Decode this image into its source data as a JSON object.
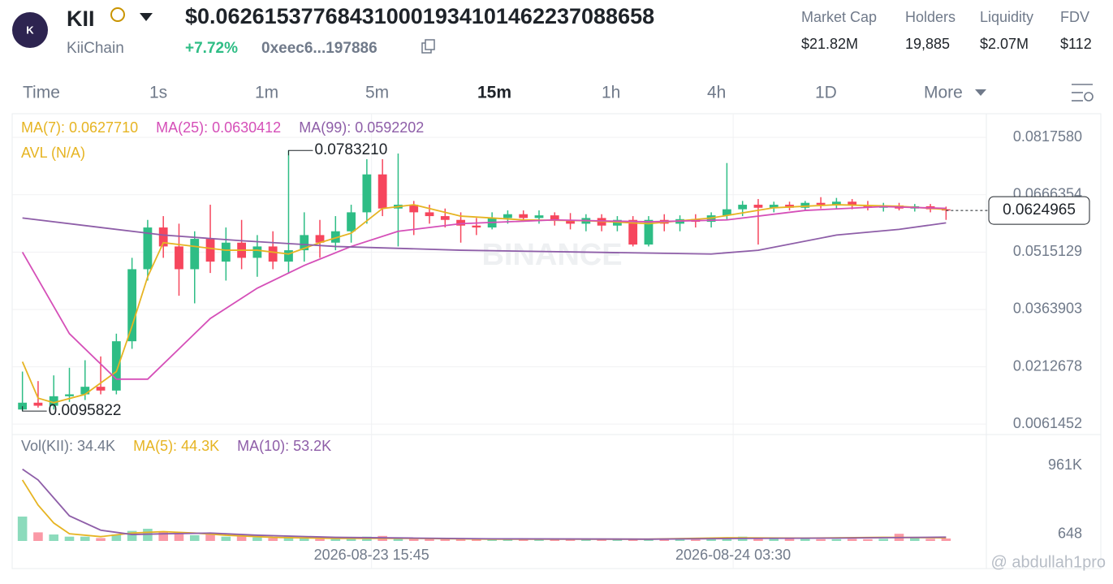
{
  "header": {
    "symbol": "KII",
    "name": "KiiChain",
    "price": "$0.062615377684310001934101462237088658",
    "change": "+7.72%",
    "address": "0xeec6...197886",
    "stats": [
      {
        "label": "Market Cap",
        "value": "$21.82M"
      },
      {
        "label": "Holders",
        "value": "19,885"
      },
      {
        "label": "Liquidity",
        "value": "$2.07M"
      },
      {
        "label": "FDV",
        "value": "$112"
      }
    ]
  },
  "tabs": [
    "Time",
    "1s",
    "1m",
    "5m",
    "15m",
    "1h",
    "4h",
    "1D",
    "More"
  ],
  "active_tab": "15m",
  "chart_data": {
    "type": "candlestick",
    "legend": [
      {
        "text": "MA(7): 0.0627710",
        "color": "#e6b422"
      },
      {
        "text": "MA(25): 0.0630412",
        "color": "#d54fb8"
      },
      {
        "text": "MA(99): 0.0592202",
        "color": "#8e5ea8"
      }
    ],
    "avl_label": "AVL (N/A)",
    "watermark": "BINANCE",
    "up_color": "#2ebd85",
    "down_color": "#f6465d",
    "open": [
      0.01,
      0.0118,
      0.011,
      0.0135,
      0.014,
      0.016,
      0.015,
      0.028,
      0.047,
      0.058,
      0.053,
      0.047,
      0.055,
      0.049,
      0.054,
      0.05,
      0.053,
      0.049,
      0.052,
      0.056,
      0.054,
      0.057,
      0.062,
      0.072,
      0.063,
      0.064,
      0.062,
      0.061,
      0.06,
      0.0585,
      0.058,
      0.0605,
      0.0615,
      0.0605,
      0.0612,
      0.06,
      0.059,
      0.0605,
      0.0585,
      0.06,
      0.0535,
      0.06,
      0.059,
      0.0602,
      0.0595,
      0.0612,
      0.0628,
      0.064,
      0.0632,
      0.064,
      0.0632,
      0.0645,
      0.064,
      0.0648,
      0.0638,
      0.0632,
      0.0638,
      0.063,
      0.0636,
      0.0628
    ],
    "high": [
      0.02,
      0.0175,
      0.019,
      0.021,
      0.023,
      0.024,
      0.03,
      0.05,
      0.06,
      0.061,
      0.059,
      0.057,
      0.064,
      0.058,
      0.06,
      0.056,
      0.057,
      0.078321,
      0.062,
      0.06,
      0.061,
      0.064,
      0.076,
      0.076,
      0.0775,
      0.065,
      0.064,
      0.063,
      0.062,
      0.0605,
      0.062,
      0.0625,
      0.0625,
      0.0625,
      0.062,
      0.0618,
      0.0615,
      0.0615,
      0.061,
      0.061,
      0.061,
      0.0615,
      0.0612,
      0.0615,
      0.062,
      0.075,
      0.065,
      0.0655,
      0.0648,
      0.0648,
      0.065,
      0.066,
      0.0658,
      0.0655,
      0.065,
      0.0645,
      0.0645,
      0.0642,
      0.0642,
      0.0635
    ],
    "low": [
      0.0095822,
      0.0105,
      0.01,
      0.012,
      0.0125,
      0.014,
      0.014,
      0.026,
      0.044,
      0.05,
      0.04,
      0.038,
      0.046,
      0.044,
      0.047,
      0.045,
      0.047,
      0.046,
      0.049,
      0.05,
      0.052,
      0.054,
      0.059,
      0.061,
      0.053,
      0.056,
      0.059,
      0.058,
      0.054,
      0.056,
      0.0575,
      0.059,
      0.0595,
      0.059,
      0.0585,
      0.0575,
      0.057,
      0.057,
      0.057,
      0.053,
      0.053,
      0.057,
      0.057,
      0.058,
      0.058,
      0.06,
      0.061,
      0.0535,
      0.062,
      0.0625,
      0.0625,
      0.063,
      0.063,
      0.0628,
      0.0625,
      0.0622,
      0.0625,
      0.0622,
      0.062,
      0.06
    ],
    "close": [
      0.0118,
      0.011,
      0.0135,
      0.014,
      0.016,
      0.015,
      0.028,
      0.047,
      0.058,
      0.053,
      0.047,
      0.055,
      0.049,
      0.054,
      0.05,
      0.053,
      0.049,
      0.052,
      0.056,
      0.054,
      0.057,
      0.062,
      0.072,
      0.063,
      0.064,
      0.062,
      0.061,
      0.06,
      0.0585,
      0.058,
      0.0605,
      0.0615,
      0.0605,
      0.0612,
      0.06,
      0.059,
      0.0605,
      0.0585,
      0.06,
      0.0535,
      0.06,
      0.059,
      0.0602,
      0.0595,
      0.0612,
      0.0628,
      0.064,
      0.0632,
      0.064,
      0.0632,
      0.0645,
      0.064,
      0.0648,
      0.0638,
      0.0632,
      0.0638,
      0.063,
      0.0636,
      0.0628,
      0.0625
    ],
    "ma_series": [
      {
        "color": "#e6b422",
        "x": [
          0,
          1,
          2,
          4,
          6,
          7,
          8,
          9,
          11,
          13,
          15,
          17,
          19,
          21,
          23,
          25,
          28,
          32,
          36,
          40,
          44,
          48,
          52,
          56,
          59
        ],
        "values": [
          0.0226,
          0.013,
          0.0118,
          0.014,
          0.02,
          0.032,
          0.045,
          0.054,
          0.053,
          0.052,
          0.052,
          0.051,
          0.054,
          0.0565,
          0.063,
          0.064,
          0.061,
          0.06,
          0.0598,
          0.059,
          0.0605,
          0.0632,
          0.064,
          0.0636,
          0.062771
        ]
      },
      {
        "color": "#d54fb8",
        "x": [
          0,
          3,
          6,
          8,
          10,
          12,
          15,
          18,
          21,
          24,
          28,
          34,
          40,
          45,
          50,
          55,
          59
        ],
        "values": [
          0.0515,
          0.03,
          0.018,
          0.018,
          0.026,
          0.034,
          0.042,
          0.048,
          0.053,
          0.057,
          0.059,
          0.06,
          0.0595,
          0.06,
          0.0625,
          0.0635,
          0.0630412
        ]
      },
      {
        "color": "#8e5ea8",
        "x": [
          0,
          5,
          9,
          14,
          20,
          28,
          36,
          44,
          47,
          52,
          56,
          59
        ],
        "values": [
          0.0605,
          0.058,
          0.056,
          0.0545,
          0.053,
          0.052,
          0.0515,
          0.051,
          0.052,
          0.056,
          0.0575,
          0.0592202
        ]
      }
    ],
    "ylim": [
      0.0034,
      0.088
    ],
    "yticks": [
      {
        "value": 0.081758,
        "label": "0.0817580"
      },
      0.0666354,
      0.0515129,
      0.0363903,
      0.0212678,
      0.0061452
    ],
    "xticks": [
      {
        "value": 22.3,
        "label": "2026-08-23 15:45"
      },
      {
        "value": 45.4,
        "label": "2026-08-24 03:30"
      }
    ],
    "high_mark": {
      "x": 17,
      "value": 0.078321,
      "label": "0.0783210"
    },
    "low_mark": {
      "x": 0,
      "value": 0.0095822
    },
    "last_price": 0.0624965,
    "volume": [
      340000,
      120000,
      90000,
      60000,
      60000,
      40000,
      90000,
      140000,
      170000,
      120000,
      100000,
      80000,
      90000,
      60000,
      70000,
      50000,
      40000,
      60000,
      40000,
      30000,
      30000,
      40000,
      60000,
      70000,
      40000,
      30000,
      30000,
      25000,
      25000,
      20000,
      25000,
      20000,
      20000,
      25000,
      20000,
      20000,
      25000,
      20000,
      20000,
      30000,
      25000,
      20000,
      20000,
      20000,
      25000,
      50000,
      60000,
      40000,
      35000,
      30000,
      30000,
      25000,
      25000,
      30000,
      25000,
      30000,
      100000,
      40000,
      30000,
      34400
    ],
    "volume_legend": "Vol(KII): 34.4K",
    "volume_ma": [
      {
        "name": "MA(5): 44.3K",
        "color": "#e6b422",
        "x": [
          0,
          1,
          2,
          3,
          5,
          7,
          9,
          11,
          13,
          16,
          20,
          25,
          30,
          40,
          45,
          50,
          55,
          59
        ],
        "values": [
          850000,
          500000,
          250000,
          100000,
          60000,
          110000,
          130000,
          110000,
          80000,
          50000,
          35000,
          35000,
          25000,
          25000,
          45000,
          40000,
          50000,
          44300
        ]
      },
      {
        "name": "MA(10): 53.2K",
        "color": "#8e5ea8",
        "x": [
          0,
          1,
          2,
          3,
          5,
          7,
          9,
          12,
          15,
          20,
          25,
          30,
          40,
          46,
          52,
          59
        ],
        "values": [
          1000000,
          850000,
          600000,
          350000,
          150000,
          90000,
          100000,
          110000,
          80000,
          50000,
          40000,
          30000,
          25000,
          35000,
          40000,
          53200
        ]
      }
    ],
    "vlim": [
      0,
      1200000
    ],
    "vticks": [
      {
        "value": 961000,
        "label": "961K"
      },
      648
    ]
  },
  "watermark_user": "@ abdullah1pro"
}
